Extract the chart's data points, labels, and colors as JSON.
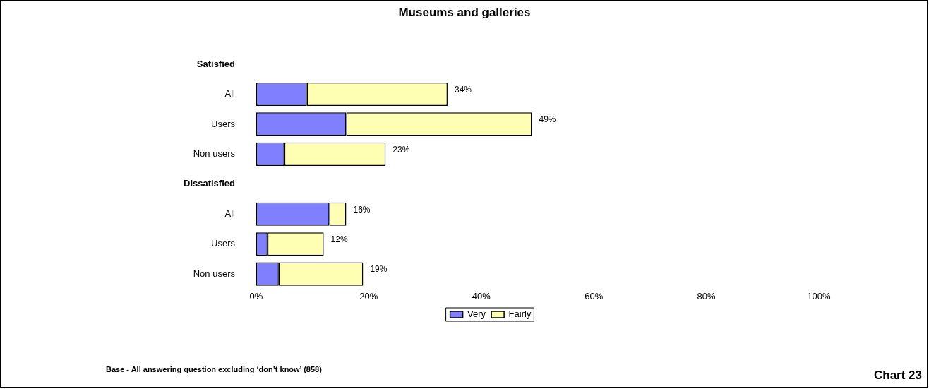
{
  "chart_data": {
    "type": "bar",
    "orientation": "horizontal",
    "stacked": true,
    "title": "Museums and galleries",
    "categories": [
      "Satisfied",
      "All",
      "Users",
      "Non users",
      "Dissatisfied",
      "All",
      "Users",
      "Non users"
    ],
    "series": [
      {
        "name": "Very",
        "color": "#8080ff",
        "values": [
          null,
          9,
          16,
          5,
          null,
          13,
          2,
          4
        ]
      },
      {
        "name": "Fairly",
        "color": "#ffffb3",
        "values": [
          null,
          25,
          33,
          18,
          null,
          3,
          10,
          15
        ]
      }
    ],
    "totals": [
      null,
      "34%",
      "49%",
      "23%",
      null,
      "16%",
      "12%",
      "19%"
    ],
    "xlim": [
      0,
      100
    ],
    "xticks": [
      {
        "value": 0,
        "label": "0%"
      },
      {
        "value": 20,
        "label": "20%"
      },
      {
        "value": 40,
        "label": "40%"
      },
      {
        "value": 60,
        "label": "60%"
      },
      {
        "value": 80,
        "label": "80%"
      },
      {
        "value": 100,
        "label": "100%"
      }
    ],
    "grid": false,
    "legend": "bottom",
    "annotations": [
      "Base - All answering question excluding ‘don’t know’ (858)",
      "Chart 23"
    ]
  }
}
